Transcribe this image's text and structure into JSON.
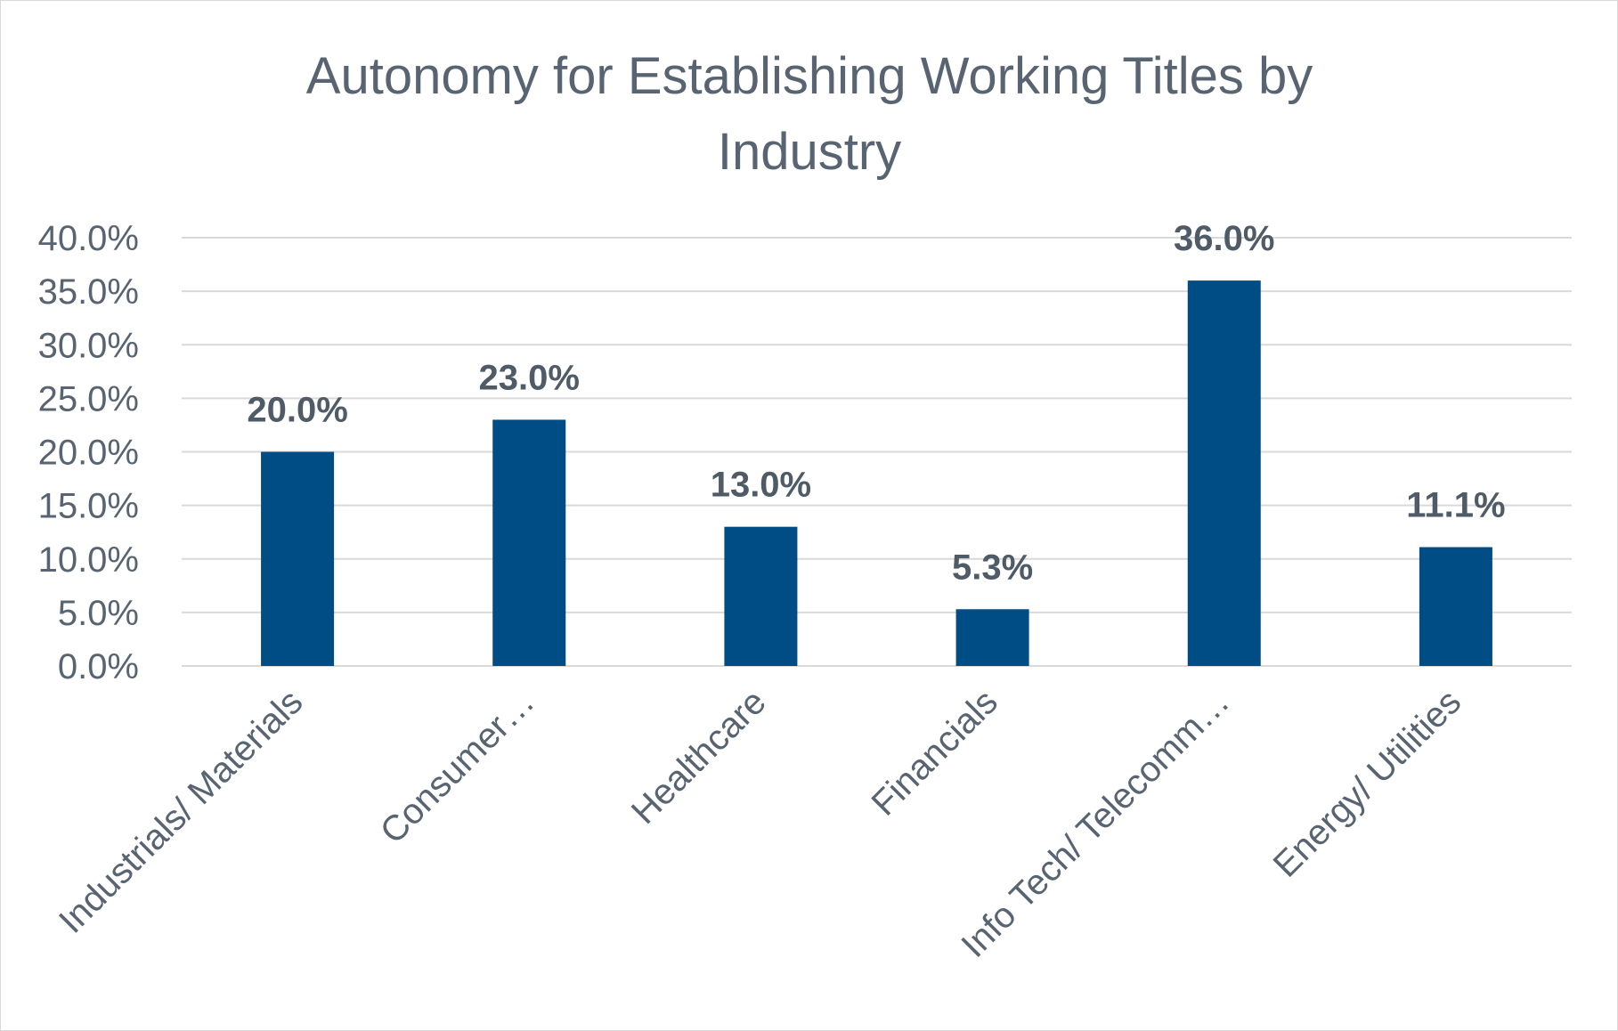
{
  "chart_data": {
    "type": "bar",
    "title_lines": [
      "Autonomy for Establishing Working Titles by",
      "Industry"
    ],
    "categories": [
      "Industrials/ Materials",
      "Consumer…",
      "Healthcare",
      "Financials",
      "Info Tech/ Telecomm…",
      "Energy/ Utilities"
    ],
    "values": [
      20.0,
      23.0,
      13.0,
      5.3,
      36.0,
      11.1
    ],
    "data_labels": [
      "20.0%",
      "23.0%",
      "13.0%",
      "5.3%",
      "36.0%",
      "11.1%"
    ],
    "ylim": [
      0,
      40
    ],
    "yticks": [
      0,
      5,
      10,
      15,
      20,
      25,
      30,
      35,
      40
    ],
    "ytick_labels": [
      "0.0%",
      "5.0%",
      "10.0%",
      "15.0%",
      "20.0%",
      "25.0%",
      "30.0%",
      "35.0%",
      "40.0%"
    ],
    "xlabel": "",
    "ylabel": "",
    "grid": true,
    "legend": "none",
    "bar_color": "#004c84"
  }
}
